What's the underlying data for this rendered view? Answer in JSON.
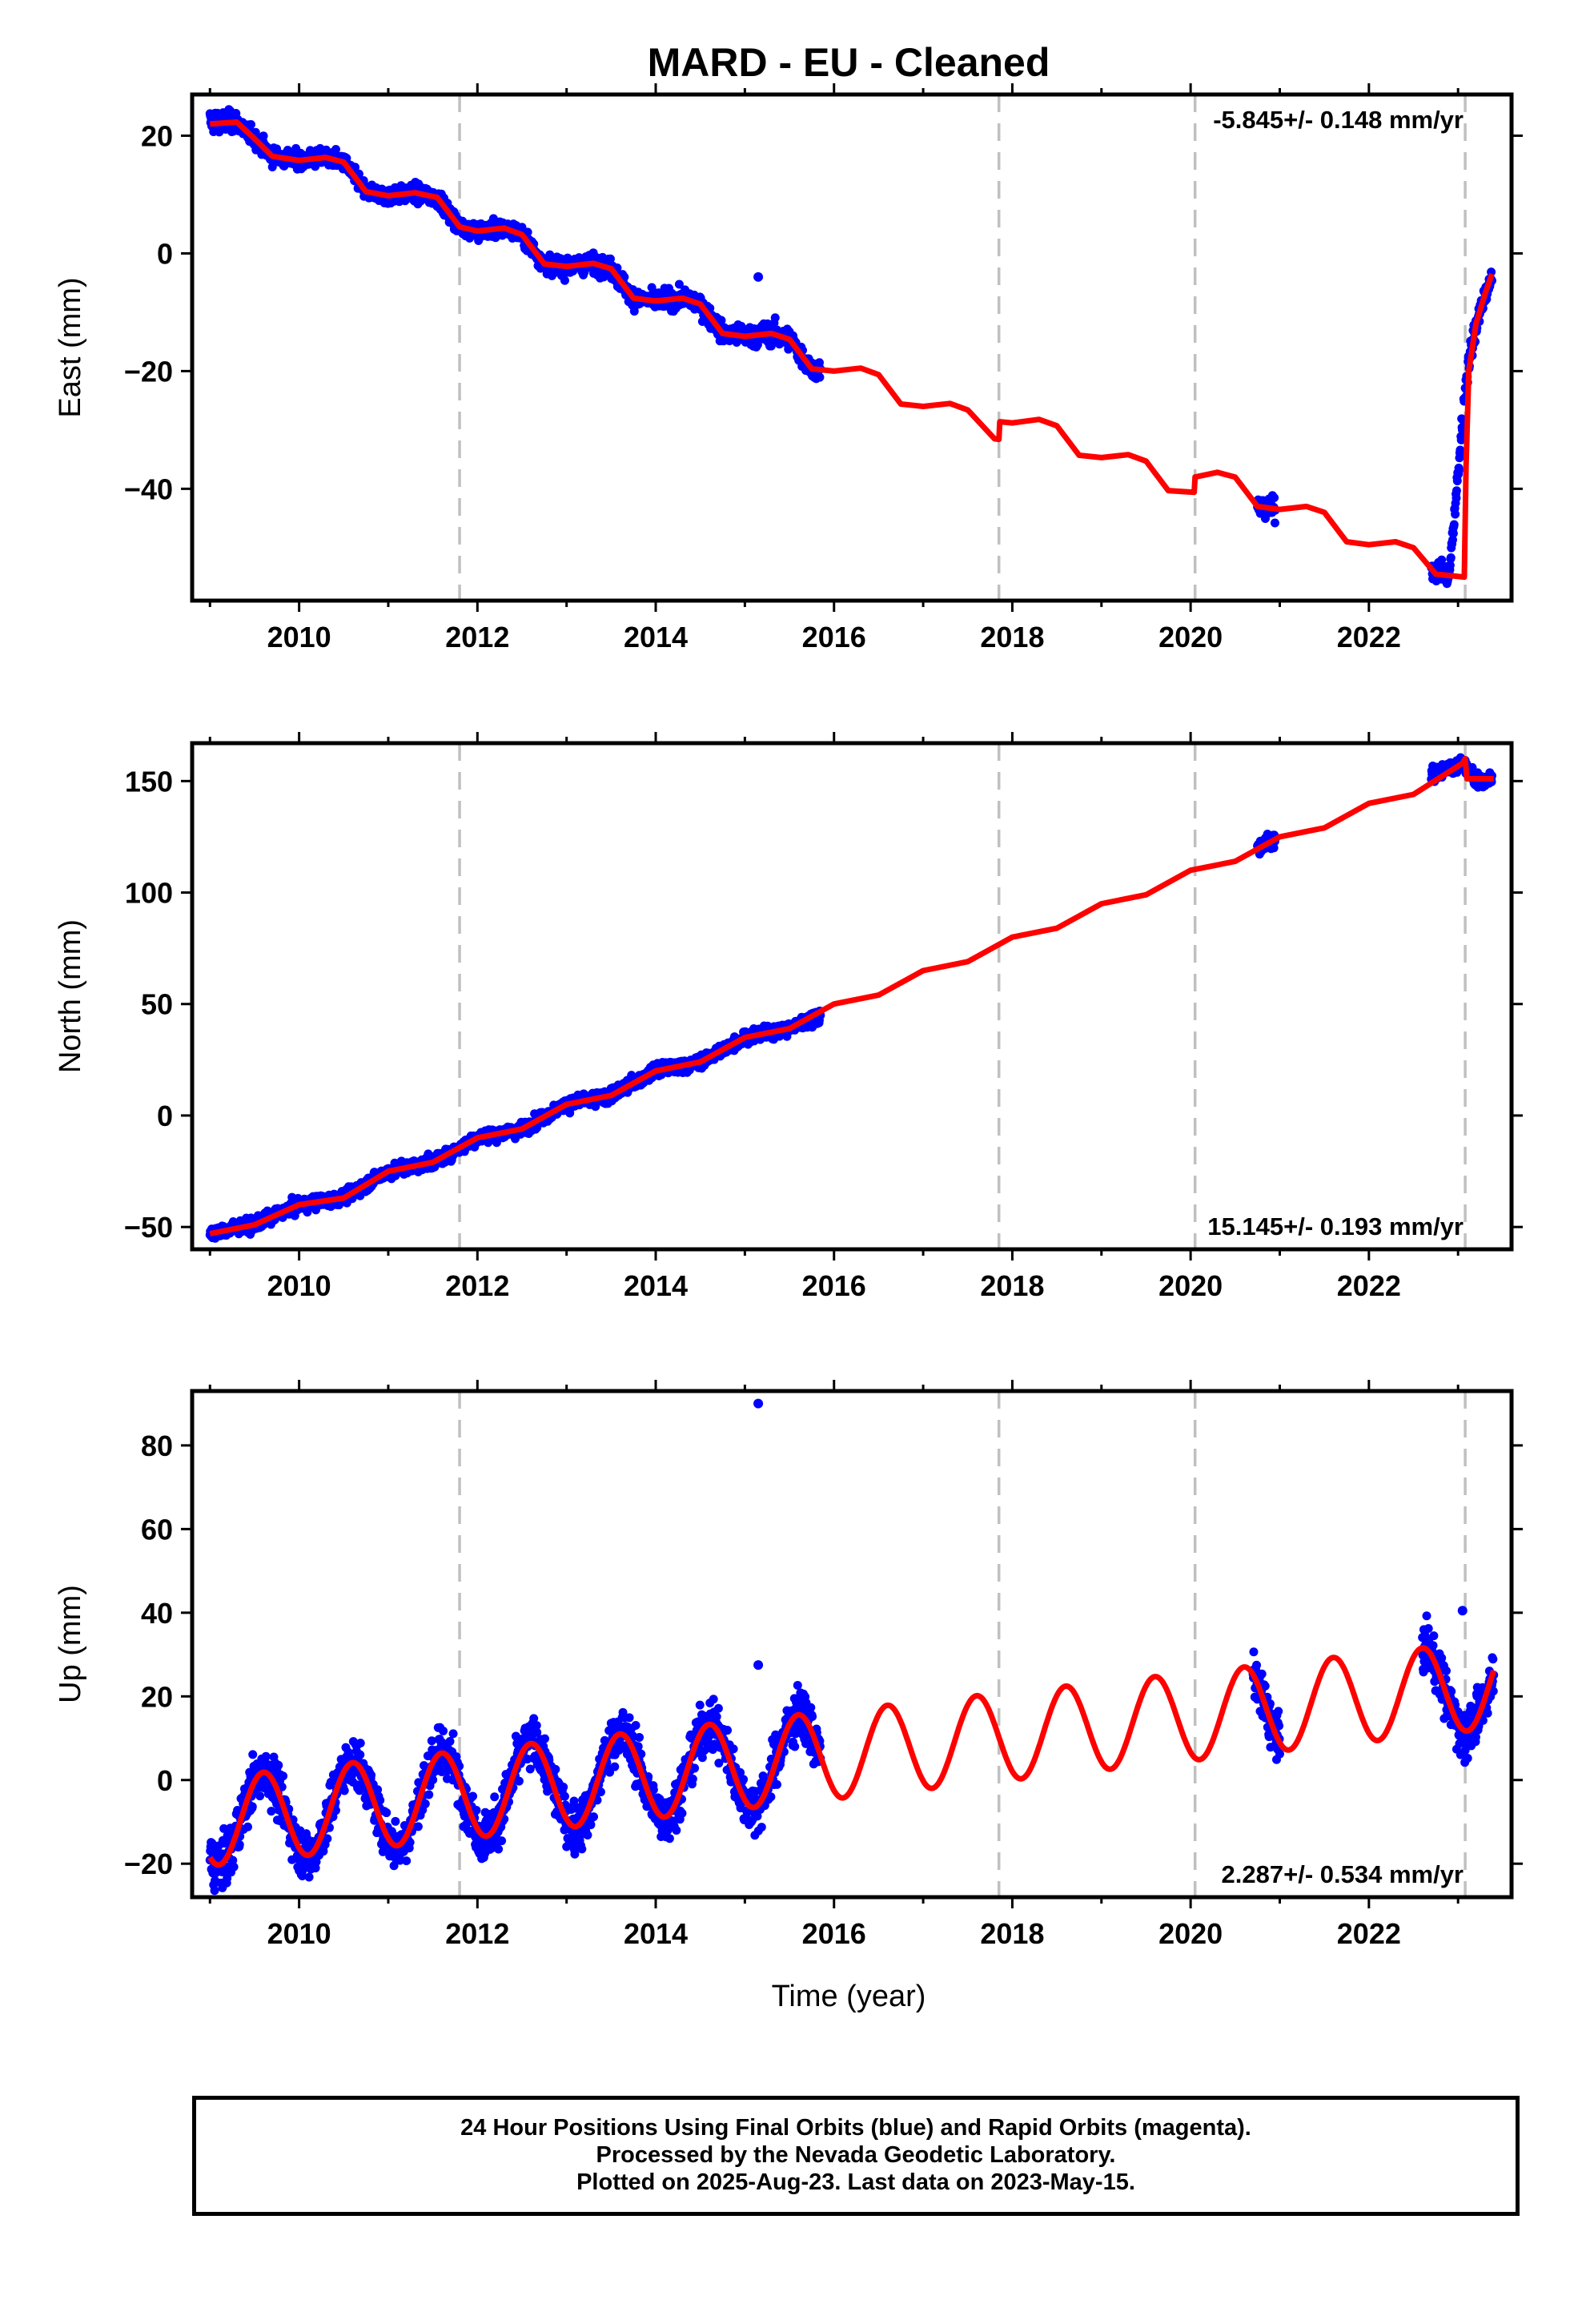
{
  "title": "MARD  - EU - Cleaned",
  "xlabel": "Time (year)",
  "caption": [
    "24 Hour Positions Using Final Orbits (blue) and Rapid Orbits (magenta).",
    "Processed by the Nevada Geodetic Laboratory.",
    "Plotted on 2025-Aug-23. Last data on 2023-May-15."
  ],
  "colors": {
    "data": "#0000ff",
    "model": "#ff0000",
    "breaks": "#c0c0c0",
    "frame": "#000000"
  },
  "chart_data": [
    {
      "type": "scatter",
      "ylabel": "East (mm)",
      "rate_label": "-5.845+/- 0.148 mm/yr",
      "rate_label_position": "top-right",
      "xlim": [
        2008.8,
        2023.6
      ],
      "ylim": [
        -59,
        27
      ],
      "xticks": [
        2010,
        2012,
        2014,
        2016,
        2018,
        2020,
        2022
      ],
      "yticks": [
        20,
        0,
        -20,
        -40
      ],
      "ytick_labels": [
        "20",
        "0",
        "−20",
        "−40"
      ],
      "breaks": [
        2011.8,
        2017.85,
        2020.05,
        2023.08
      ],
      "model": [
        [
          2009.0,
          22.0
        ],
        [
          2009.3,
          22.3
        ],
        [
          2009.5,
          19.5
        ],
        [
          2009.7,
          16.5
        ],
        [
          2010.0,
          15.8
        ],
        [
          2010.3,
          16.3
        ],
        [
          2010.5,
          15.5
        ],
        [
          2010.75,
          10.5
        ],
        [
          2011.0,
          9.8
        ],
        [
          2011.3,
          10.3
        ],
        [
          2011.55,
          9.5
        ],
        [
          2011.8,
          4.5
        ],
        [
          2012.0,
          3.8
        ],
        [
          2012.3,
          4.3
        ],
        [
          2012.5,
          3.2
        ],
        [
          2012.75,
          -1.8
        ],
        [
          2013.0,
          -2.2
        ],
        [
          2013.3,
          -1.7
        ],
        [
          2013.5,
          -2.6
        ],
        [
          2013.75,
          -7.6
        ],
        [
          2014.0,
          -8.1
        ],
        [
          2014.3,
          -7.6
        ],
        [
          2014.5,
          -8.6
        ],
        [
          2014.75,
          -13.6
        ],
        [
          2015.0,
          -14.1
        ],
        [
          2015.3,
          -13.6
        ],
        [
          2015.5,
          -14.6
        ],
        [
          2015.75,
          -19.6
        ],
        [
          2016.0,
          -20.0
        ],
        [
          2016.3,
          -19.5
        ],
        [
          2016.5,
          -20.6
        ],
        [
          2016.75,
          -25.6
        ],
        [
          2017.0,
          -26.0
        ],
        [
          2017.3,
          -25.5
        ],
        [
          2017.5,
          -26.6
        ],
        [
          2017.8,
          -31.5
        ],
        [
          2017.85,
          -31.6
        ],
        [
          2017.86,
          -28.6
        ],
        [
          2018.0,
          -28.8
        ],
        [
          2018.3,
          -28.2
        ],
        [
          2018.5,
          -29.3
        ],
        [
          2018.75,
          -34.3
        ],
        [
          2019.0,
          -34.7
        ],
        [
          2019.3,
          -34.2
        ],
        [
          2019.5,
          -35.3
        ],
        [
          2019.75,
          -40.3
        ],
        [
          2020.04,
          -40.6
        ],
        [
          2020.05,
          -38.0
        ],
        [
          2020.3,
          -37.2
        ],
        [
          2020.5,
          -38.0
        ],
        [
          2020.75,
          -43.0
        ],
        [
          2021.0,
          -43.5
        ],
        [
          2021.3,
          -43.0
        ],
        [
          2021.5,
          -44.0
        ],
        [
          2021.75,
          -49.0
        ],
        [
          2022.0,
          -49.5
        ],
        [
          2022.3,
          -49.0
        ],
        [
          2022.5,
          -50.0
        ],
        [
          2022.75,
          -54.5
        ],
        [
          2023.07,
          -55.0
        ],
        [
          2023.09,
          -36.0
        ],
        [
          2023.12,
          -20.0
        ],
        [
          2023.2,
          -12.0
        ],
        [
          2023.3,
          -7.0
        ],
        [
          2023.38,
          -3.5
        ]
      ],
      "observations": [
        [
          2009.0,
          22.5,
          1.6
        ],
        [
          2009.3,
          22.3,
          1.4
        ],
        [
          2009.5,
          19.5,
          1.2
        ],
        [
          2009.7,
          16.5,
          1.2
        ],
        [
          2010.0,
          15.8,
          1.2
        ],
        [
          2010.3,
          16.3,
          1.2
        ],
        [
          2010.5,
          15.5,
          1.2
        ],
        [
          2010.75,
          10.5,
          1.2
        ],
        [
          2011.0,
          9.8,
          1.2
        ],
        [
          2011.3,
          10.3,
          1.2
        ],
        [
          2011.55,
          9.5,
          1.2
        ],
        [
          2011.8,
          4.5,
          1.2
        ],
        [
          2012.0,
          3.8,
          1.2
        ],
        [
          2012.3,
          4.3,
          1.2
        ],
        [
          2012.5,
          3.2,
          1.2
        ],
        [
          2012.75,
          -1.8,
          1.3
        ],
        [
          2013.0,
          -2.2,
          1.3
        ],
        [
          2013.3,
          -1.7,
          1.3
        ],
        [
          2013.5,
          -2.6,
          1.4
        ],
        [
          2013.75,
          -7.6,
          1.4
        ],
        [
          2014.0,
          -8.1,
          1.3
        ],
        [
          2014.3,
          -7.6,
          1.3
        ],
        [
          2014.5,
          -8.6,
          1.4
        ],
        [
          2014.75,
          -13.6,
          1.4
        ],
        [
          2015.0,
          -14.1,
          1.5
        ],
        [
          2015.3,
          -13.6,
          1.6
        ],
        [
          2015.5,
          -14.6,
          1.6
        ],
        [
          2015.75,
          -19.6,
          1.4
        ],
        [
          2015.85,
          -19.8,
          1.2
        ],
        [
          2020.75,
          -43.0,
          1.6
        ],
        [
          2020.95,
          -43.5,
          1.5
        ],
        [
          2022.7,
          -53.5,
          1.4
        ],
        [
          2022.9,
          -55.0,
          1.5
        ],
        [
          2023.1,
          -20.0,
          2.5
        ],
        [
          2023.2,
          -12.0,
          2.0
        ],
        [
          2023.3,
          -7.0,
          1.5
        ],
        [
          2023.38,
          -4.5,
          1.2
        ]
      ],
      "outliers": [
        [
          2015.15,
          -4.0
        ]
      ]
    },
    {
      "type": "scatter",
      "ylabel": "North (mm)",
      "rate_label": "15.145+/- 0.193 mm/yr",
      "rate_label_position": "bottom-right",
      "xlim": [
        2008.8,
        2023.6
      ],
      "ylim": [
        -60,
        167
      ],
      "xticks": [
        2010,
        2012,
        2014,
        2016,
        2018,
        2020,
        2022
      ],
      "yticks": [
        150,
        100,
        50,
        0,
        -50
      ],
      "ytick_labels": [
        "150",
        "100",
        "50",
        "0",
        "−50"
      ],
      "breaks": [
        2011.8,
        2017.85,
        2020.05,
        2023.08
      ],
      "model": [
        [
          2009.0,
          -53.0
        ],
        [
          2009.5,
          -49.0
        ],
        [
          2010.0,
          -40.0
        ],
        [
          2010.5,
          -37.0
        ],
        [
          2011.0,
          -25.0
        ],
        [
          2011.5,
          -21.0
        ],
        [
          2012.0,
          -10.0
        ],
        [
          2012.5,
          -6.0
        ],
        [
          2013.0,
          5.0
        ],
        [
          2013.5,
          9.0
        ],
        [
          2014.0,
          20.0
        ],
        [
          2014.5,
          24.0
        ],
        [
          2015.0,
          35.0
        ],
        [
          2015.5,
          39.0
        ],
        [
          2016.0,
          50.0
        ],
        [
          2016.5,
          54.0
        ],
        [
          2017.0,
          65.0
        ],
        [
          2017.5,
          69.0
        ],
        [
          2018.0,
          80.0
        ],
        [
          2018.5,
          84.0
        ],
        [
          2019.0,
          95.0
        ],
        [
          2019.5,
          99.0
        ],
        [
          2020.0,
          110.0
        ],
        [
          2020.5,
          114.0
        ],
        [
          2021.0,
          125.0
        ],
        [
          2021.5,
          129.0
        ],
        [
          2022.0,
          140.0
        ],
        [
          2022.5,
          144.0
        ],
        [
          2023.05,
          158.0
        ],
        [
          2023.08,
          160.0
        ],
        [
          2023.1,
          151.0
        ],
        [
          2023.4,
          151.0
        ]
      ],
      "observations": [
        [
          2009.0,
          -53.0,
          2.5
        ],
        [
          2009.5,
          -49.0,
          2.5
        ],
        [
          2010.0,
          -40.0,
          2.5
        ],
        [
          2010.5,
          -37.0,
          2.5
        ],
        [
          2011.0,
          -25.0,
          2.5
        ],
        [
          2011.5,
          -21.0,
          2.5
        ],
        [
          2012.0,
          -10.0,
          2.5
        ],
        [
          2012.5,
          -6.0,
          2.5
        ],
        [
          2013.0,
          5.0,
          2.5
        ],
        [
          2013.5,
          9.0,
          2.5
        ],
        [
          2014.0,
          20.0,
          2.5
        ],
        [
          2014.5,
          24.0,
          2.5
        ],
        [
          2015.0,
          35.0,
          2.5
        ],
        [
          2015.5,
          39.0,
          2.5
        ],
        [
          2015.85,
          45.0,
          2.5
        ],
        [
          2020.75,
          120.0,
          3.0
        ],
        [
          2020.95,
          124.0,
          3.0
        ],
        [
          2022.7,
          153.0,
          2.5
        ],
        [
          2023.05,
          158.0,
          2.5
        ],
        [
          2023.2,
          150.0,
          2.5
        ],
        [
          2023.38,
          150.5,
          2.5
        ]
      ],
      "outliers": []
    },
    {
      "type": "scatter",
      "ylabel": "Up (mm)",
      "rate_label": "2.287+/- 0.534 mm/yr",
      "rate_label_position": "bottom-right",
      "xlim": [
        2008.8,
        2023.6
      ],
      "ylim": [
        -28,
        93
      ],
      "xticks": [
        2010,
        2012,
        2014,
        2016,
        2018,
        2020,
        2022
      ],
      "yticks": [
        80,
        60,
        40,
        20,
        0,
        -20
      ],
      "ytick_labels": [
        "80",
        "60",
        "40",
        "20",
        "0",
        "−20"
      ],
      "breaks": [
        2011.8,
        2017.85,
        2020.05,
        2023.08
      ],
      "model_seasonal": {
        "offset": 6.0,
        "slope": 2.287,
        "t0": 2016.0,
        "amplitude": 10.5,
        "peak_phase": 0.6
      },
      "observations_range": [
        [
          2009.0,
          2015.85
        ],
        [
          2020.7,
          2021.0
        ],
        [
          2022.6,
          2023.4
        ]
      ],
      "observation_scatter": 5.0,
      "outliers": [
        [
          2015.15,
          90.0
        ],
        [
          2023.05,
          40.5
        ],
        [
          2015.15,
          27.5
        ]
      ]
    }
  ]
}
